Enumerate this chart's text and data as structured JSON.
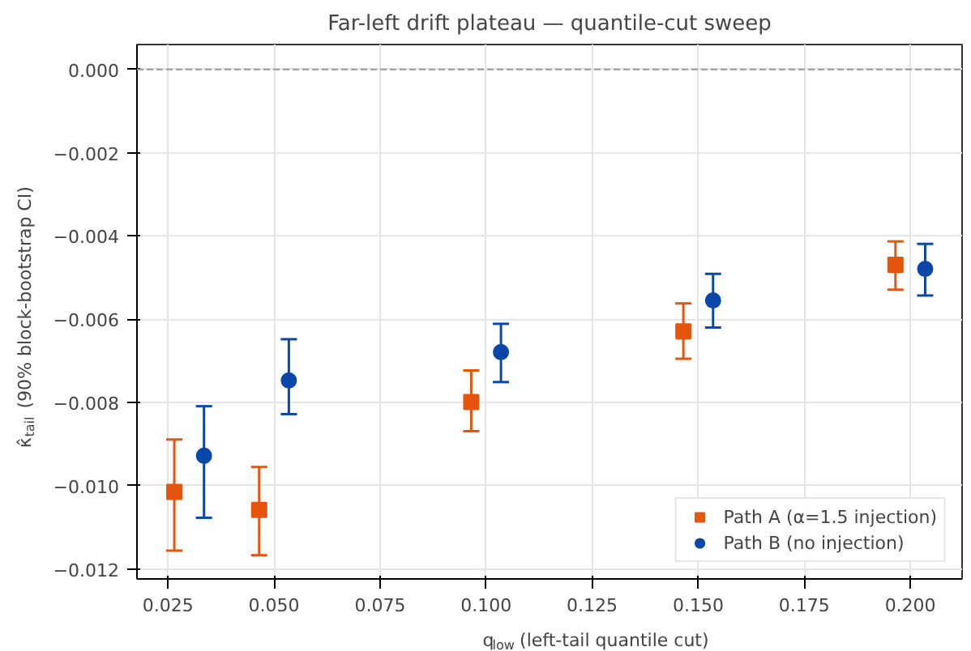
{
  "chart_data": {
    "type": "scatter",
    "title": "Far-left drift plateau — quantile-cut sweep",
    "xlabel": "q$_{low}$ (left-tail quantile cut)",
    "ylabel": "κ̂$_{tail}$ (90% block-bootstrap CI)",
    "xlim": [
      0.0177,
      0.2122
    ],
    "ylim": [
      -0.01224,
      0.0006
    ],
    "xticks": [
      {
        "value": 0.025,
        "label": "0.025"
      },
      {
        "value": 0.05,
        "label": "0.050"
      },
      {
        "value": 0.075,
        "label": "0.075"
      },
      {
        "value": 0.1,
        "label": "0.100"
      },
      {
        "value": 0.125,
        "label": "0.125"
      },
      {
        "value": 0.15,
        "label": "0.150"
      },
      {
        "value": 0.175,
        "label": "0.175"
      },
      {
        "value": 0.2,
        "label": "0.200"
      }
    ],
    "yticks": [
      {
        "value": 0,
        "label": "0.000"
      },
      {
        "value": -0.002,
        "label": "−0.002"
      },
      {
        "value": -0.004,
        "label": "−0.004"
      },
      {
        "value": -0.006,
        "label": "−0.006"
      },
      {
        "value": -0.008,
        "label": "−0.008"
      },
      {
        "value": -0.01,
        "label": "−0.010"
      },
      {
        "value": -0.012,
        "label": "−0.012"
      }
    ],
    "grid": true,
    "legend": "bottom right",
    "ref_lines": [
      {
        "axis": "y",
        "value": 0,
        "color": "#999999",
        "line_style": "dashed"
      }
    ],
    "series": [
      {
        "name": "Path A (α=1.5 injection)",
        "color": "#e6550d",
        "marker": "square",
        "x": [
          0.0265,
          0.0465,
          0.0965,
          0.1465,
          0.1965
        ],
        "values": [
          -0.01015,
          -0.01058,
          -0.00799,
          -0.00629,
          -0.00469
        ],
        "errors": [
          [
            -0.01156,
            -0.00889
          ],
          [
            -0.01167,
            -0.00955
          ],
          [
            -0.00869,
            -0.00723
          ],
          [
            -0.00695,
            -0.00562
          ],
          [
            -0.00529,
            -0.00413
          ]
        ]
      },
      {
        "name": "Path B (no injection)",
        "color": "#0a47a9",
        "marker": "circle",
        "x": [
          0.0335,
          0.0535,
          0.1035,
          0.1535,
          0.2035
        ],
        "values": [
          -0.00928,
          -0.00747,
          -0.00679,
          -0.00555,
          -0.00479
        ],
        "errors": [
          [
            -0.01077,
            -0.00809
          ],
          [
            -0.00828,
            -0.00648
          ],
          [
            -0.00751,
            -0.00611
          ],
          [
            -0.0062,
            -0.00491
          ],
          [
            -0.00543,
            -0.00419
          ]
        ]
      }
    ]
  }
}
